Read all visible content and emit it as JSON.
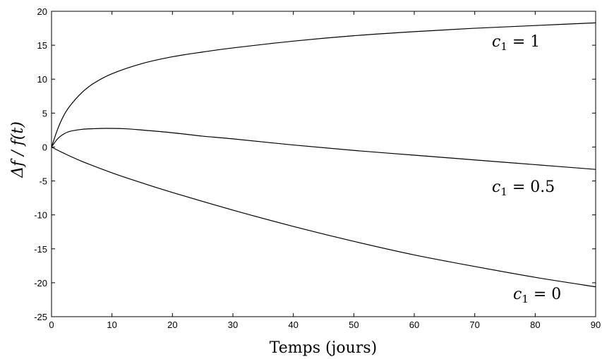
{
  "chart_data": {
    "type": "line",
    "title": "",
    "xlabel": "Temps (jours)",
    "ylabel": "Δf / f(t)",
    "xlim": [
      0,
      90
    ],
    "ylim": [
      -25,
      20
    ],
    "xticks": [
      0,
      10,
      20,
      30,
      40,
      50,
      60,
      70,
      80,
      90
    ],
    "yticks": [
      20,
      15,
      10,
      5,
      0,
      -5,
      -10,
      -15,
      -20,
      -25
    ],
    "grid": false,
    "series": [
      {
        "name": "c1 = 1",
        "label_var": "c",
        "label_sub": "1",
        "label_rest": " = 1",
        "x": [
          0,
          1,
          2,
          3,
          5,
          7,
          10,
          15,
          20,
          25,
          30,
          40,
          50,
          60,
          70,
          80,
          90
        ],
        "y": [
          0,
          2.6,
          4.6,
          6.0,
          8.0,
          9.4,
          10.8,
          12.3,
          13.3,
          14.0,
          14.6,
          15.6,
          16.4,
          17.0,
          17.5,
          17.9,
          18.3
        ]
      },
      {
        "name": "c1 = 0.5",
        "label_var": "c",
        "label_sub": "1",
        "label_rest": " = 0.5",
        "x": [
          0,
          1,
          2,
          3,
          5,
          7,
          9,
          12,
          15,
          20,
          25,
          30,
          40,
          50,
          60,
          70,
          80,
          90
        ],
        "y": [
          0,
          1.2,
          1.9,
          2.3,
          2.6,
          2.7,
          2.75,
          2.7,
          2.5,
          2.1,
          1.6,
          1.2,
          0.3,
          -0.5,
          -1.2,
          -1.9,
          -2.6,
          -3.3
        ]
      },
      {
        "name": "c1 = 0",
        "label_var": "c",
        "label_sub": "1",
        "label_rest": " = 0",
        "x": [
          0,
          2,
          5,
          10,
          15,
          20,
          30,
          40,
          50,
          60,
          70,
          80,
          90
        ],
        "y": [
          0,
          -0.9,
          -2.1,
          -3.8,
          -5.3,
          -6.7,
          -9.3,
          -11.7,
          -13.9,
          -15.9,
          -17.6,
          -19.2,
          -20.6
        ]
      }
    ]
  }
}
